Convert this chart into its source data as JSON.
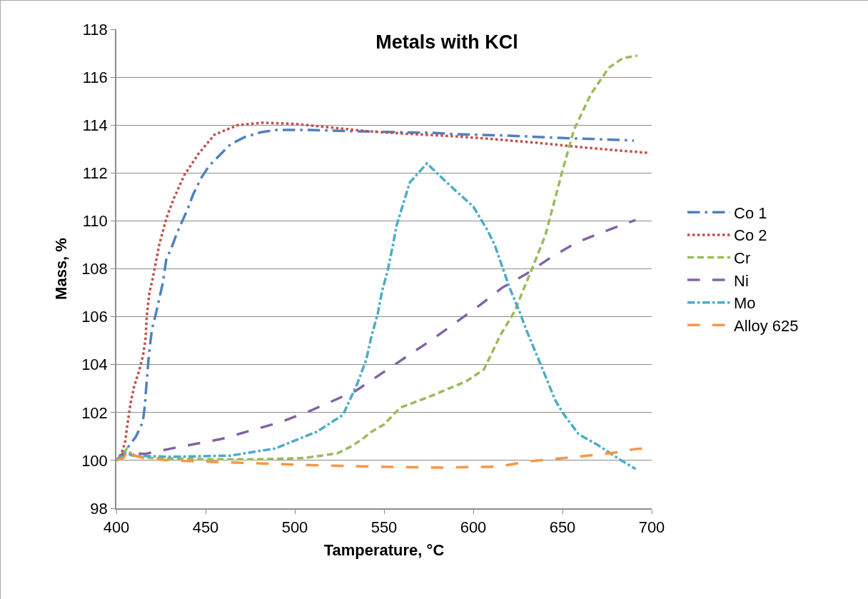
{
  "chart_data": {
    "type": "line",
    "title": "Metals with KCl",
    "xlabel": "Tamperature, °C",
    "ylabel": "Mass, %",
    "xlim": [
      400,
      700
    ],
    "xticks": [
      400,
      450,
      500,
      550,
      600,
      650,
      700
    ],
    "ylim": [
      98,
      118
    ],
    "yticks": [
      98,
      100,
      102,
      104,
      106,
      108,
      110,
      112,
      114,
      116,
      118
    ],
    "grid": "y",
    "legend": "right",
    "marker": "none",
    "series": [
      {
        "name": "Co 1",
        "color": "#4f81bd",
        "line_style": "longdashdot",
        "x": [
          400,
          406,
          411,
          414.8,
          416,
          417,
          418,
          419,
          420,
          422.4,
          426,
          428,
          431,
          434,
          440,
          443,
          447.6,
          452,
          464,
          472,
          481,
          490,
          506,
          530,
          560,
          577,
          590,
          620,
          650,
          682,
          690
        ],
        "values": [
          100,
          100.5,
          101,
          101.6,
          102.3,
          103.3,
          104.2,
          104.9,
          105.5,
          106.2,
          107.4,
          108.4,
          108.9,
          109.5,
          110.5,
          111.1,
          111.8,
          112.3,
          113.2,
          113.5,
          113.7,
          113.8,
          113.8,
          113.75,
          113.7,
          113.68,
          113.62,
          113.56,
          113.46,
          113.38,
          113.35
        ]
      },
      {
        "name": "Co 2",
        "color": "#c0504d",
        "line_style": "dotted",
        "x": [
          400,
          403,
          405,
          406,
          408,
          410,
          413,
          415,
          416.4,
          417,
          418.5,
          420.4,
          424,
          428,
          432,
          438,
          446,
          455,
          468,
          482,
          500,
          520,
          540,
          560,
          590,
          610,
          636,
          660,
          680,
          698
        ],
        "values": [
          100,
          100.3,
          100.8,
          101.4,
          102.4,
          103.1,
          103.8,
          104.4,
          105.1,
          106,
          107,
          107.6,
          109,
          110.1,
          110.9,
          111.9,
          112.8,
          113.6,
          114,
          114.1,
          114.05,
          113.9,
          113.75,
          113.65,
          113.53,
          113.42,
          113.26,
          113.08,
          112.95,
          112.84
        ]
      },
      {
        "name": "Cr",
        "color": "#9bbb59",
        "line_style": "dashed",
        "x": [
          400,
          404,
          406,
          409,
          420,
          450,
          480,
          505,
          515,
          524,
          532,
          538,
          543,
          550,
          559,
          575,
          596,
          606,
          615,
          623,
          634,
          640.4,
          650,
          656.4,
          666,
          676,
          684,
          692
        ],
        "values": [
          100,
          100.3,
          100.5,
          100.2,
          100.1,
          100.05,
          100.05,
          100.1,
          100.2,
          100.3,
          100.6,
          100.9,
          101.2,
          101.5,
          102.2,
          102.65,
          103.3,
          103.8,
          105.2,
          106.2,
          108.2,
          109.4,
          112.1,
          113.8,
          115.3,
          116.4,
          116.8,
          116.9
        ]
      },
      {
        "name": "Ni",
        "color": "#8064a2",
        "line_style": "longdash",
        "x": [
          400,
          405,
          410,
          416,
          431,
          459,
          492,
          508,
          534,
          548,
          564,
          578,
          591,
          604,
          616,
          630,
          644,
          658,
          675,
          691
        ],
        "values": [
          100,
          100.3,
          100.3,
          100.27,
          100.5,
          100.9,
          101.6,
          102.05,
          102.9,
          103.6,
          104.4,
          105.1,
          105.8,
          106.5,
          107.2,
          107.8,
          108.5,
          109.1,
          109.6,
          110.04
        ]
      },
      {
        "name": "Mo",
        "color": "#4bacc6",
        "line_style": "dashdot",
        "x": [
          400,
          405,
          410,
          430,
          464,
          489,
          512.4,
          527,
          535,
          540,
          543,
          546.4,
          549,
          552,
          555,
          557,
          564.4,
          574,
          581,
          591,
          600,
          608,
          612,
          620.4,
          626,
          630,
          635,
          640,
          646,
          651,
          659,
          669.6,
          683,
          691
        ],
        "values": [
          100,
          100.3,
          100.2,
          100.15,
          100.2,
          100.5,
          101.2,
          101.9,
          103.2,
          104.2,
          105.2,
          106.1,
          107.1,
          107.9,
          109,
          109.8,
          111.6,
          112.4,
          111.9,
          111.2,
          110.6,
          109.6,
          109,
          107.2,
          106.2,
          105.4,
          104.5,
          103.6,
          102.5,
          101.9,
          101.1,
          100.65,
          100,
          99.64
        ]
      },
      {
        "name": "Alloy 625",
        "color": "#f79646",
        "line_style": "longdash",
        "x": [
          400,
          404,
          407,
          410,
          415,
          430,
          450,
          480,
          510,
          540,
          556.4,
          582,
          614,
          632,
          658,
          682,
          690,
          695
        ],
        "values": [
          100,
          100.1,
          100.5,
          100.2,
          100.1,
          100,
          99.95,
          99.88,
          99.8,
          99.75,
          99.73,
          99.7,
          99.74,
          99.97,
          100.15,
          100.35,
          100.47,
          100.5
        ]
      }
    ]
  }
}
